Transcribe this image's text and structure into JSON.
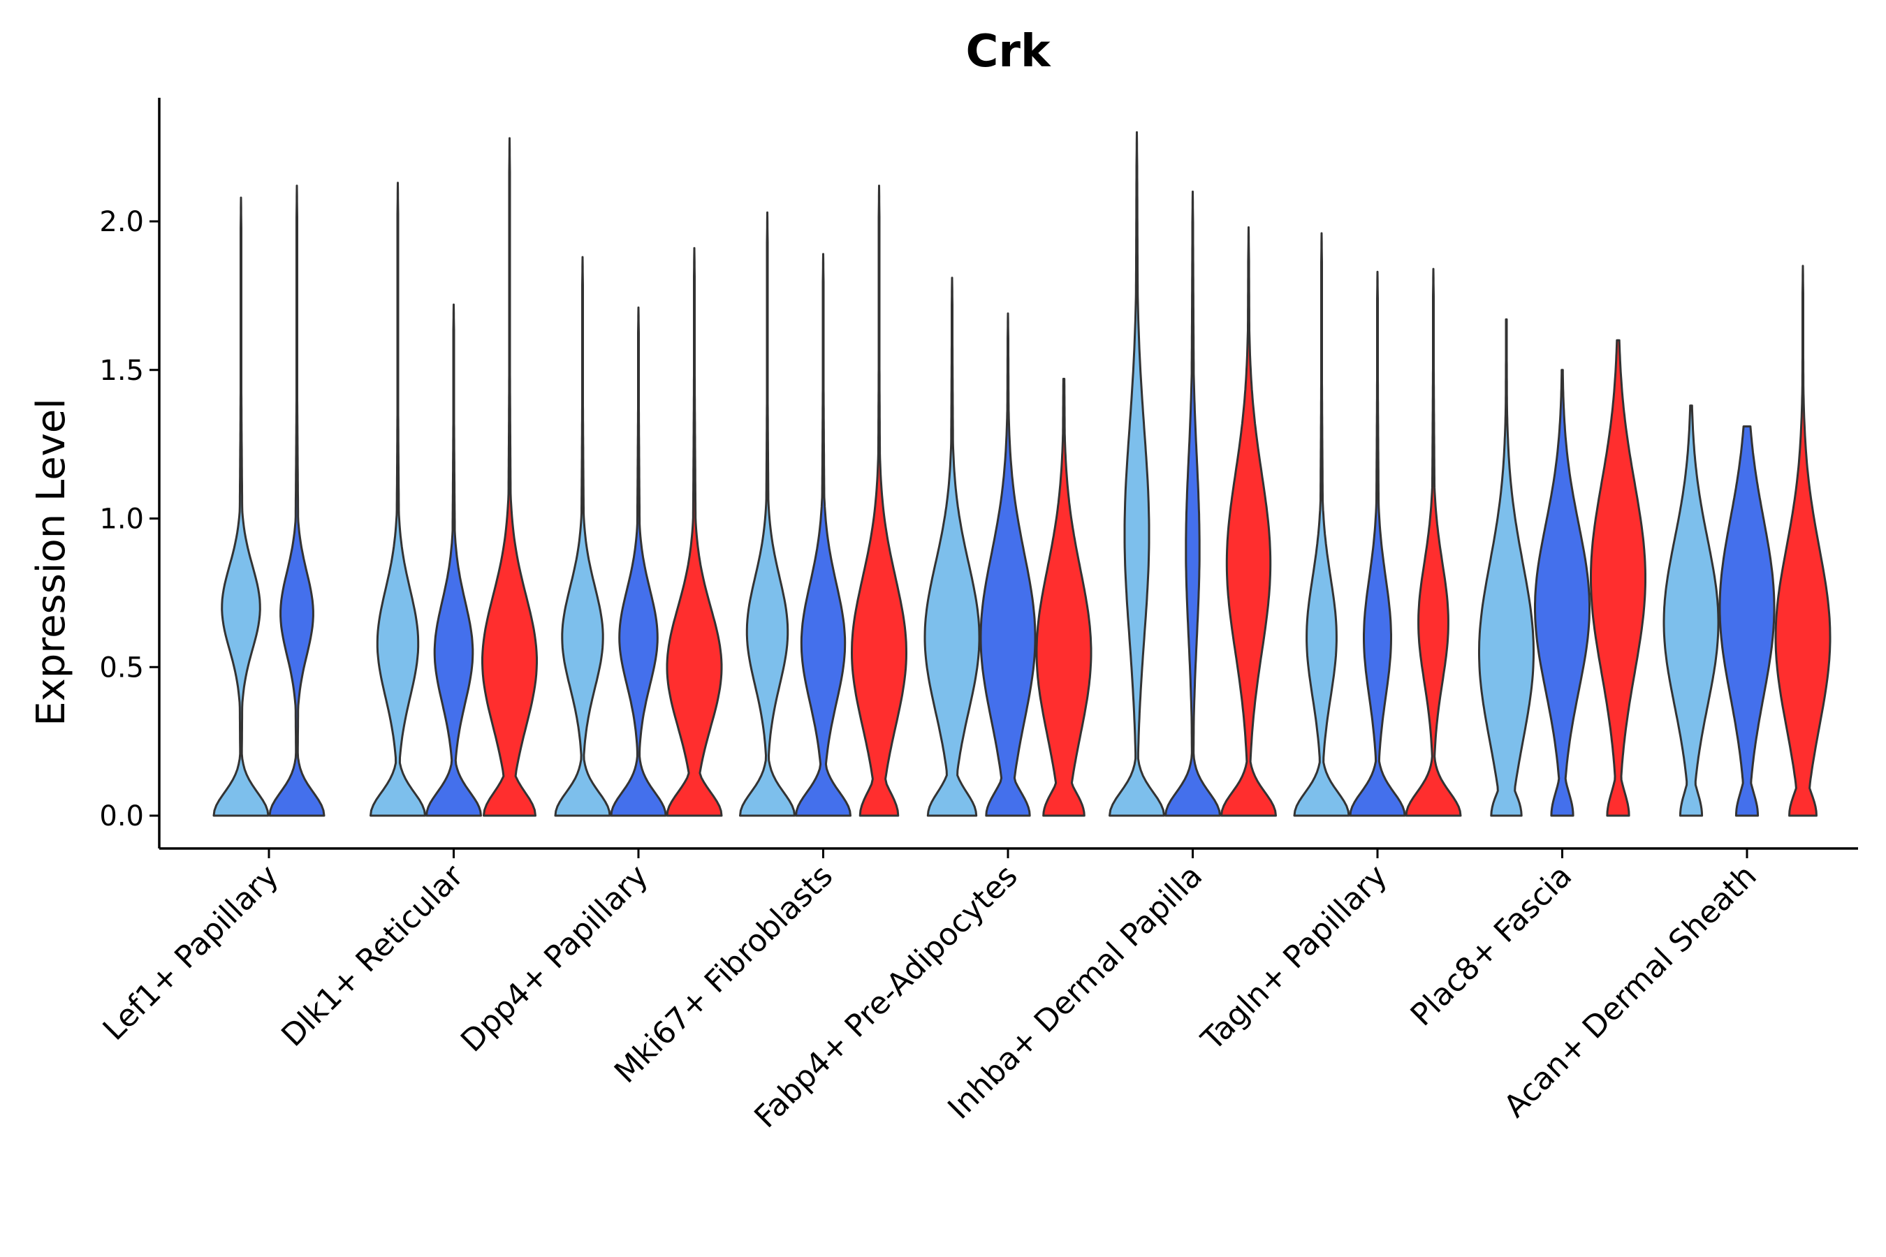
{
  "chart_data": {
    "type": "violin",
    "title": "Crk",
    "xlabel": "",
    "ylabel": "Expression Level",
    "ylim": [
      -0.11,
      2.42
    ],
    "yticks": [
      0.0,
      0.5,
      1.0,
      1.5,
      2.0
    ],
    "ytick_labels": [
      "0.0",
      "0.5",
      "1.0",
      "1.5",
      "2.0"
    ],
    "legend": "none",
    "grid": false,
    "series_colors": [
      "#7dbfec",
      "#4470ec",
      "#ff2e2e"
    ],
    "categories": [
      "Lef1+ Papillary",
      "Dlk1+ Reticular",
      "Dpp4+ Papillary",
      "Mki67+ Fibroblasts",
      "Fabp4+ Pre-Adipocytes",
      "Inhba+ Dermal Papilla",
      "Tagln+ Papillary",
      "Plac8+ Fascia",
      "Acan+ Dermal Sheath"
    ],
    "violins": [
      {
        "category": 0,
        "group": 0,
        "max": 2.08,
        "flat_top": false,
        "zero_peak": 1.0,
        "mode": 0.7,
        "mode_width": 0.7,
        "mode_sd": 0.14,
        "tail_sd": 0.42
      },
      {
        "category": 0,
        "group": 1,
        "max": 2.12,
        "flat_top": false,
        "zero_peak": 1.0,
        "mode": 0.68,
        "mode_width": 0.6,
        "mode_sd": 0.14,
        "tail_sd": 0.42
      },
      {
        "category": 1,
        "group": 0,
        "max": 2.13,
        "flat_top": false,
        "zero_peak": 1.0,
        "mode": 0.58,
        "mode_width": 0.75,
        "mode_sd": 0.18,
        "tail_sd": 0.45
      },
      {
        "category": 1,
        "group": 1,
        "max": 1.72,
        "flat_top": false,
        "zero_peak": 1.0,
        "mode": 0.55,
        "mode_width": 0.7,
        "mode_sd": 0.17,
        "tail_sd": 0.45
      },
      {
        "category": 1,
        "group": 2,
        "max": 2.28,
        "flat_top": false,
        "zero_peak": 0.9,
        "mode": 0.52,
        "mode_width": 0.95,
        "mode_sd": 0.22,
        "tail_sd": 0.55
      },
      {
        "category": 2,
        "group": 0,
        "max": 1.88,
        "flat_top": false,
        "zero_peak": 1.0,
        "mode": 0.6,
        "mode_width": 0.75,
        "mode_sd": 0.17,
        "tail_sd": 0.45
      },
      {
        "category": 2,
        "group": 1,
        "max": 1.71,
        "flat_top": false,
        "zero_peak": 1.0,
        "mode": 0.6,
        "mode_width": 0.7,
        "mode_sd": 0.16,
        "tail_sd": 0.45
      },
      {
        "category": 2,
        "group": 2,
        "max": 1.91,
        "flat_top": false,
        "zero_peak": 0.9,
        "mode": 0.5,
        "mode_width": 0.9,
        "mode_sd": 0.2,
        "tail_sd": 0.55
      },
      {
        "category": 3,
        "group": 0,
        "max": 2.03,
        "flat_top": false,
        "zero_peak": 1.0,
        "mode": 0.62,
        "mode_width": 0.75,
        "mode_sd": 0.18,
        "tail_sd": 0.45
      },
      {
        "category": 3,
        "group": 1,
        "max": 1.89,
        "flat_top": false,
        "zero_peak": 1.0,
        "mode": 0.58,
        "mode_width": 0.8,
        "mode_sd": 0.2,
        "tail_sd": 0.5
      },
      {
        "category": 3,
        "group": 2,
        "max": 2.12,
        "flat_top": false,
        "zero_peak": 0.7,
        "mode": 0.55,
        "mode_width": 1.0,
        "mode_sd": 0.25,
        "tail_sd": 0.55
      },
      {
        "category": 4,
        "group": 0,
        "max": 1.81,
        "flat_top": false,
        "zero_peak": 0.8,
        "mode": 0.6,
        "mode_width": 0.9,
        "mode_sd": 0.25,
        "tail_sd": 0.55
      },
      {
        "category": 4,
        "group": 1,
        "max": 1.69,
        "flat_top": false,
        "zero_peak": 0.8,
        "mode": 0.6,
        "mode_width": 1.0,
        "mode_sd": 0.28,
        "tail_sd": 0.55
      },
      {
        "category": 4,
        "group": 2,
        "max": 1.47,
        "flat_top": true,
        "zero_peak": 0.6,
        "mode": 0.55,
        "mode_width": 0.8,
        "mode_sd": 0.28,
        "tail_sd": 0.55
      },
      {
        "category": 5,
        "group": 0,
        "max": 2.3,
        "flat_top": false,
        "zero_peak": 1.0,
        "mode": 0.95,
        "mode_width": 0.45,
        "mode_sd": 0.35,
        "tail_sd": 0.7
      },
      {
        "category": 5,
        "group": 1,
        "max": 2.1,
        "flat_top": false,
        "zero_peak": 1.0,
        "mode": 0.9,
        "mode_width": 0.25,
        "mode_sd": 0.3,
        "tail_sd": 0.6
      },
      {
        "category": 5,
        "group": 2,
        "max": 1.98,
        "flat_top": false,
        "zero_peak": 1.0,
        "mode": 0.85,
        "mode_width": 0.8,
        "mode_sd": 0.3,
        "tail_sd": 0.6
      },
      {
        "category": 6,
        "group": 0,
        "max": 1.96,
        "flat_top": false,
        "zero_peak": 1.0,
        "mode": 0.6,
        "mode_width": 0.55,
        "mode_sd": 0.2,
        "tail_sd": 0.5
      },
      {
        "category": 6,
        "group": 1,
        "max": 1.83,
        "flat_top": false,
        "zero_peak": 1.0,
        "mode": 0.6,
        "mode_width": 0.5,
        "mode_sd": 0.2,
        "tail_sd": 0.5
      },
      {
        "category": 6,
        "group": 2,
        "max": 1.84,
        "flat_top": false,
        "zero_peak": 1.0,
        "mode": 0.65,
        "mode_width": 0.55,
        "mode_sd": 0.2,
        "tail_sd": 0.5
      },
      {
        "category": 7,
        "group": 0,
        "max": 1.67,
        "flat_top": true,
        "zero_peak": 0.5,
        "mode": 0.55,
        "mode_width": 0.9,
        "mode_sd": 0.3,
        "tail_sd": 0.55
      },
      {
        "category": 7,
        "group": 1,
        "max": 1.5,
        "flat_top": true,
        "zero_peak": 0.4,
        "mode": 0.7,
        "mode_width": 1.0,
        "mode_sd": 0.28,
        "tail_sd": 0.55
      },
      {
        "category": 7,
        "group": 2,
        "max": 1.6,
        "flat_top": true,
        "zero_peak": 0.4,
        "mode": 0.8,
        "mode_width": 1.0,
        "mode_sd": 0.32,
        "tail_sd": 0.55
      },
      {
        "category": 8,
        "group": 0,
        "max": 1.38,
        "flat_top": true,
        "zero_peak": 0.4,
        "mode": 0.65,
        "mode_width": 1.0,
        "mode_sd": 0.28,
        "tail_sd": 0.55
      },
      {
        "category": 8,
        "group": 1,
        "max": 1.31,
        "flat_top": true,
        "zero_peak": 0.4,
        "mode": 0.7,
        "mode_width": 1.0,
        "mode_sd": 0.3,
        "tail_sd": 0.55
      },
      {
        "category": 8,
        "group": 2,
        "max": 1.85,
        "flat_top": false,
        "zero_peak": 0.5,
        "mode": 0.6,
        "mode_width": 1.0,
        "mode_sd": 0.3,
        "tail_sd": 0.55
      }
    ]
  }
}
